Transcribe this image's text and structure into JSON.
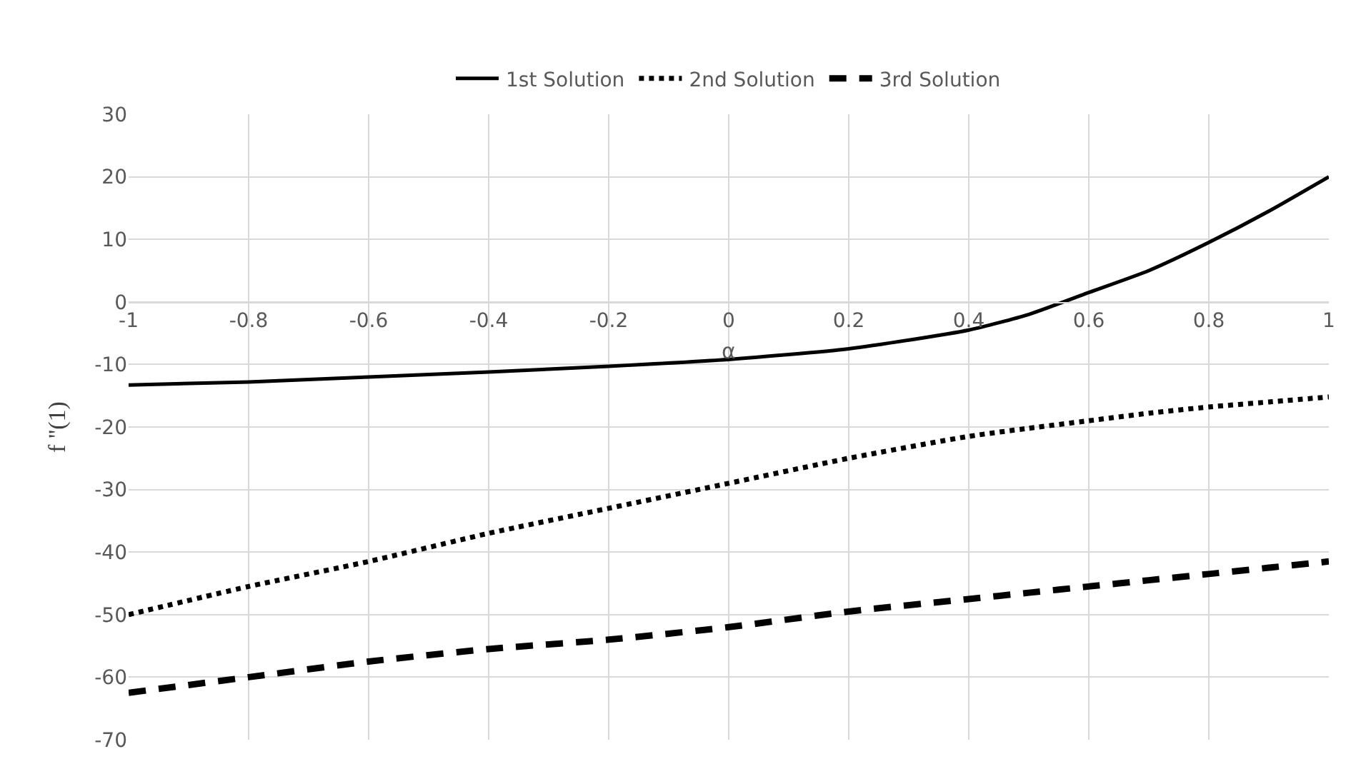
{
  "chart_data": {
    "type": "line",
    "xlabel": "α",
    "ylabel": "f ''(1)",
    "x": [
      -1,
      -0.8,
      -0.6,
      -0.4,
      -0.2,
      0,
      0.2,
      0.4,
      0.5,
      0.6,
      0.7,
      0.8,
      0.9,
      1
    ],
    "series": [
      {
        "name": "1st Solution",
        "color": "#000000",
        "line_style": "solid",
        "values": [
          -13.3,
          -12.8,
          -12,
          -11.2,
          -10.3,
          -9.2,
          -7.5,
          -4.5,
          -2,
          1.5,
          5,
          9.5,
          14.5,
          20
        ]
      },
      {
        "name": "2nd Solution",
        "color": "#000000",
        "line_style": "dotted",
        "values": [
          -50,
          -45.5,
          -41.5,
          -37,
          -33,
          -29,
          -25,
          -21.5,
          -20.2,
          -19,
          -17.8,
          -16.8,
          -16,
          -15.2
        ]
      },
      {
        "name": "3rd Solution",
        "color": "#000000",
        "line_style": "dashed",
        "values": [
          -62.5,
          -60,
          -57.5,
          -55.5,
          -54,
          -52,
          -49.5,
          -47.5,
          -46.5,
          -45.5,
          -44.5,
          -43.5,
          -42.5,
          -41.5
        ]
      }
    ],
    "xlim": [
      -1,
      1
    ],
    "xticks": [
      -1,
      -0.8,
      -0.6,
      -0.4,
      -0.2,
      0,
      0.2,
      0.4,
      0.6,
      0.8,
      1
    ],
    "ylim": [
      -70,
      30
    ],
    "yticks": [
      -70,
      -60,
      -50,
      -40,
      -30,
      -20,
      -10,
      0,
      10,
      20,
      30
    ],
    "grid": true,
    "legend": "top",
    "marker": "none"
  }
}
